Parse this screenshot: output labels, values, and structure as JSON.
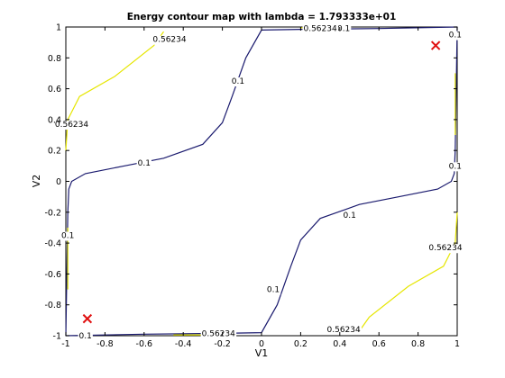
{
  "chart_data": {
    "type": "contour",
    "title": "Energy contour map with lambda = 1.793333e+01",
    "xlabel": "V1",
    "ylabel": "V2",
    "xlim": [
      -1,
      1
    ],
    "ylim": [
      -1,
      1
    ],
    "grid": false,
    "xticks": [
      "-1",
      "-0.8",
      "-0.6",
      "-0.4",
      "-0.2",
      "0",
      "0.2",
      "0.4",
      "0.6",
      "0.8",
      "1"
    ],
    "yticks": [
      "-1",
      "-0.8",
      "-0.6",
      "-0.4",
      "-0.2",
      "0",
      "0.2",
      "0.4",
      "0.6",
      "0.8",
      "1"
    ],
    "colors": {
      "low": "#1a1a6e",
      "high": "#e6e600",
      "marker": "#e01010"
    },
    "levels": [
      {
        "label": "0.1",
        "color": "#1a1a6e",
        "lines": [
          [
            [
              -1,
              -1
            ],
            [
              -0.995,
              -0.6
            ],
            [
              -0.99,
              -0.2
            ],
            [
              -0.985,
              -0.05
            ],
            [
              -0.97,
              0.0
            ],
            [
              -0.9,
              0.05
            ],
            [
              -0.7,
              0.1
            ],
            [
              -0.5,
              0.15
            ],
            [
              -0.3,
              0.24
            ],
            [
              -0.2,
              0.38
            ],
            [
              -0.15,
              0.55
            ],
            [
              -0.08,
              0.8
            ],
            [
              0.0,
              0.98
            ],
            [
              0.2,
              0.985
            ],
            [
              0.6,
              0.99
            ],
            [
              1,
              1
            ]
          ],
          [
            [
              1,
              1
            ],
            [
              0.995,
              0.6
            ],
            [
              0.99,
              0.2
            ],
            [
              0.985,
              0.05
            ],
            [
              0.97,
              0.0
            ],
            [
              0.9,
              -0.05
            ],
            [
              0.7,
              -0.1
            ],
            [
              0.5,
              -0.15
            ],
            [
              0.3,
              -0.24
            ],
            [
              0.2,
              -0.38
            ],
            [
              0.15,
              -0.55
            ],
            [
              0.08,
              -0.8
            ],
            [
              0.0,
              -0.98
            ],
            [
              -0.2,
              -0.985
            ],
            [
              -0.6,
              -0.99
            ],
            [
              -1,
              -1
            ]
          ]
        ],
        "labels": [
          [
            -0.6,
            0.12
          ],
          [
            -0.12,
            0.65
          ],
          [
            0.42,
            0.99
          ],
          [
            0.45,
            -0.22
          ],
          [
            0.06,
            -0.7
          ],
          [
            -0.2,
            -0.99
          ],
          [
            -0.9,
            -1.0
          ],
          [
            -0.99,
            -0.35
          ],
          [
            0.99,
            0.1
          ],
          [
            0.99,
            0.95
          ]
        ]
      },
      {
        "label": "0.56234",
        "color": "#e6e600",
        "lines": [
          [
            [
              -1,
              0.2
            ],
            [
              -0.99,
              0.4
            ],
            [
              -0.93,
              0.55
            ],
            [
              -0.75,
              0.68
            ],
            [
              -0.55,
              0.88
            ],
            [
              -0.5,
              0.97
            ]
          ],
          [
            [
              1,
              -0.2
            ],
            [
              0.99,
              -0.4
            ],
            [
              0.93,
              -0.55
            ],
            [
              0.75,
              -0.68
            ],
            [
              0.55,
              -0.88
            ],
            [
              0.5,
              -0.97
            ]
          ],
          [
            [
              0.2,
              0.995
            ],
            [
              0.45,
              0.995
            ]
          ],
          [
            [
              -0.45,
              -0.995
            ],
            [
              -0.2,
              -0.995
            ]
          ],
          [
            [
              0.99,
              0.3
            ],
            [
              0.99,
              0.7
            ]
          ],
          [
            [
              -0.99,
              -0.3
            ],
            [
              -0.99,
              -0.7
            ]
          ]
        ],
        "labels": [
          [
            -0.47,
            0.92
          ],
          [
            -0.97,
            0.37
          ],
          [
            0.3,
            0.99
          ],
          [
            0.94,
            -0.43
          ],
          [
            0.42,
            -0.96
          ],
          [
            -0.22,
            -0.985
          ]
        ]
      }
    ],
    "markers": [
      {
        "x": 0.89,
        "y": 0.88,
        "symbol": "x"
      },
      {
        "x": -0.89,
        "y": -0.89,
        "symbol": "x"
      }
    ]
  }
}
